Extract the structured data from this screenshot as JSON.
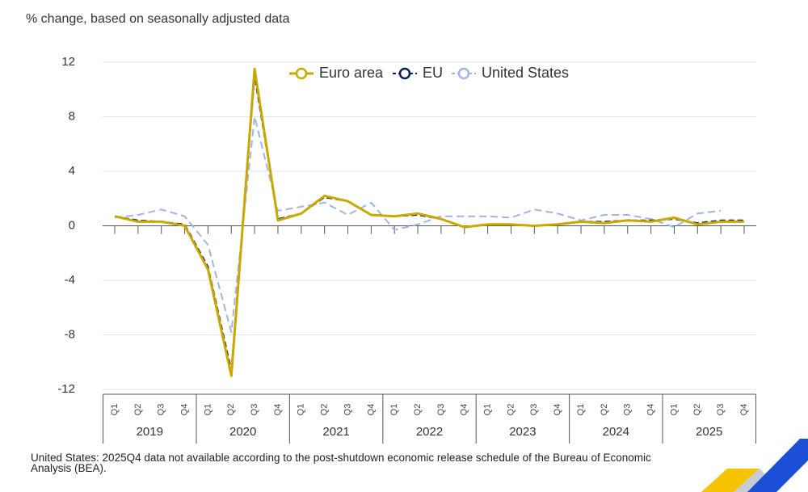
{
  "chart_data": {
    "type": "line",
    "subtitle": "% change, based on seasonally adjusted data",
    "categories": [
      "Q1",
      "Q2",
      "Q3",
      "Q4",
      "Q1",
      "Q2",
      "Q3",
      "Q4",
      "Q1",
      "Q2",
      "Q3",
      "Q4",
      "Q1",
      "Q2",
      "Q3",
      "Q4",
      "Q1",
      "Q2",
      "Q3",
      "Q4",
      "Q1",
      "Q2",
      "Q3",
      "Q4",
      "Q1",
      "Q2",
      "Q3",
      "Q4"
    ],
    "year_groups": [
      "2019",
      "2020",
      "2021",
      "2022",
      "2023",
      "2024",
      "2025"
    ],
    "series": [
      {
        "name": "Euro area",
        "color": "#c9a800",
        "values": [
          0.7,
          0.3,
          0.3,
          0.0,
          -3.2,
          -11.0,
          11.5,
          0.4,
          0.9,
          2.2,
          1.8,
          0.8,
          0.7,
          0.9,
          0.5,
          -0.1,
          0.1,
          0.1,
          0.0,
          0.1,
          0.3,
          0.2,
          0.4,
          0.3,
          0.6,
          0.1,
          0.3,
          0.3
        ]
      },
      {
        "name": "EU",
        "color": "#0b1f5c",
        "values": [
          0.7,
          0.4,
          0.3,
          0.1,
          -3.0,
          -10.6,
          11.0,
          0.5,
          0.9,
          2.1,
          1.8,
          0.8,
          0.7,
          0.8,
          0.5,
          -0.1,
          0.1,
          0.1,
          0.0,
          0.1,
          0.3,
          0.3,
          0.4,
          0.4,
          0.5,
          0.2,
          0.4,
          0.4
        ]
      },
      {
        "name": "United States",
        "color": "#9fb6e8",
        "values": [
          0.6,
          0.8,
          1.2,
          0.7,
          -1.4,
          -7.8,
          8.0,
          1.1,
          1.4,
          1.7,
          0.8,
          1.7,
          -0.3,
          0.1,
          0.7,
          0.7,
          0.7,
          0.6,
          1.2,
          0.9,
          0.4,
          0.8,
          0.8,
          0.5,
          -0.1,
          0.9,
          1.1,
          null
        ]
      }
    ],
    "ylim": [
      -12,
      12
    ],
    "yticks": [
      -12,
      -8,
      -4,
      0,
      4,
      8,
      12
    ],
    "grid": true,
    "footnote": "United States: 2025Q4 data not available according to the post-shutdown economic release schedule of the Bureau of Economic Analysis (BEA)."
  }
}
